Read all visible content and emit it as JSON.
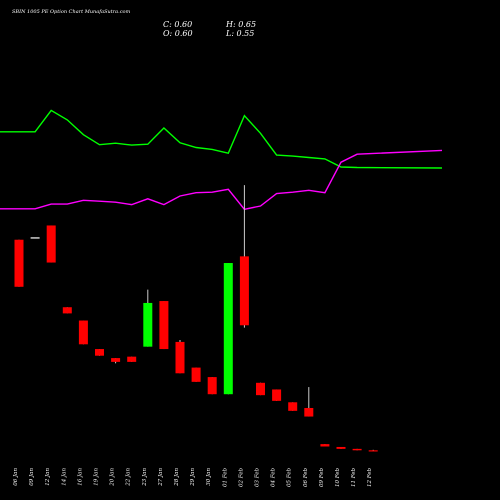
{
  "chart_data": {
    "type": "candlestick",
    "title": "SBIN 1005 PE Option Chart MunafaSutra.com",
    "ohlc_readout": {
      "close": "C: 0.60",
      "high": "H: 0.65",
      "open": "O: 0.60",
      "low": "L: 0.55"
    },
    "x_labels": [
      "06 Jan",
      "09 Jan",
      "12 Jan",
      "14 Jan",
      "16 Jan",
      "19 Jan",
      "20 Jan",
      "22 Jan",
      "23 Jan",
      "27 Jan",
      "28 Jan",
      "29 Jan",
      "30 Jan",
      "01 Feb",
      "02 Feb",
      "03 Feb",
      "04 Feb",
      "05 Feb",
      "06 Feb",
      "09 Feb",
      "10 Feb",
      "11 Feb",
      "12 Feb"
    ],
    "candles": [
      {
        "open": 23.5,
        "close": 13.6,
        "high": 23.5,
        "low": 13.6
      },
      {
        "open": 24.0,
        "close": 24.0,
        "high": 24.0,
        "low": 24.0
      },
      {
        "open": 26.5,
        "close": 18.7,
        "high": 26.5,
        "low": 18.7
      },
      {
        "open": 9.3,
        "close": 8.0,
        "high": 9.3,
        "low": 8.0
      },
      {
        "open": 6.5,
        "close": 1.5,
        "high": 6.5,
        "low": 1.5
      },
      {
        "open": 0.5,
        "close": -0.9,
        "high": 0.5,
        "low": -0.9
      },
      {
        "open": -1.4,
        "close": -2.2,
        "high": -1.4,
        "low": -2.5
      },
      {
        "open": -1.1,
        "close": -2.2,
        "high": -1.1,
        "low": -2.2
      },
      {
        "open": 1.0,
        "close": 10.2,
        "high": 13.0,
        "low": 1.0
      },
      {
        "open": 10.6,
        "close": 0.5,
        "high": 10.6,
        "low": 0.5
      },
      {
        "open": 2.0,
        "close": -4.6,
        "high": 2.4,
        "low": -4.6
      },
      {
        "open": -3.4,
        "close": -6.4,
        "high": -3.4,
        "low": -6.4
      },
      {
        "open": -5.4,
        "close": -9.0,
        "high": -5.4,
        "low": -9.0
      },
      {
        "open": -9.0,
        "close": 18.6,
        "high": 18.6,
        "low": -9.0
      },
      {
        "open": 20.0,
        "close": 5.5,
        "high": 35.0,
        "low": 5.0
      },
      {
        "open": -6.6,
        "close": -9.2,
        "high": -6.6,
        "low": -9.2
      },
      {
        "open": -8.0,
        "close": -10.4,
        "high": -8.0,
        "low": -10.4
      },
      {
        "open": -10.7,
        "close": -12.5,
        "high": -10.7,
        "low": -12.5
      },
      {
        "open": -11.9,
        "close": -13.7,
        "high": -7.5,
        "low": -13.7
      },
      {
        "open": -19.5,
        "close": -20.0,
        "high": -19.5,
        "low": -20.0
      },
      {
        "open": -20.1,
        "close": -20.5,
        "high": -20.1,
        "low": -20.5
      },
      {
        "open": -20.5,
        "close": -20.8,
        "high": -20.5,
        "low": -20.8
      },
      {
        "open": -20.8,
        "close": -21.0,
        "high": -20.7,
        "low": -21.0
      }
    ],
    "series": [
      {
        "color": "#00ff00",
        "values": [
          46.2,
          46.2,
          50.7,
          48.7,
          45.6,
          43.5,
          43.8,
          43.4,
          43.6,
          47.0,
          43.9,
          42.9,
          42.5,
          41.7,
          49.6,
          45.9,
          41.3,
          41.1,
          40.8,
          40.5,
          38.8,
          38.7,
          38.6
        ]
      },
      {
        "color": "#ff00ff",
        "values": [
          30.0,
          30.0,
          31.0,
          31.0,
          31.8,
          31.6,
          31.4,
          30.9,
          32.1,
          30.9,
          32.7,
          33.4,
          33.5,
          34.1,
          29.9,
          30.6,
          33.2,
          33.5,
          33.9,
          33.4,
          39.8,
          41.5,
          42.3
        ]
      }
    ],
    "y_range": [
      -22,
      55
    ],
    "grid": false,
    "colors": {
      "up": "#00ff00",
      "down": "#ff0000",
      "neutral": "#ffffff",
      "background": "#000000"
    }
  }
}
